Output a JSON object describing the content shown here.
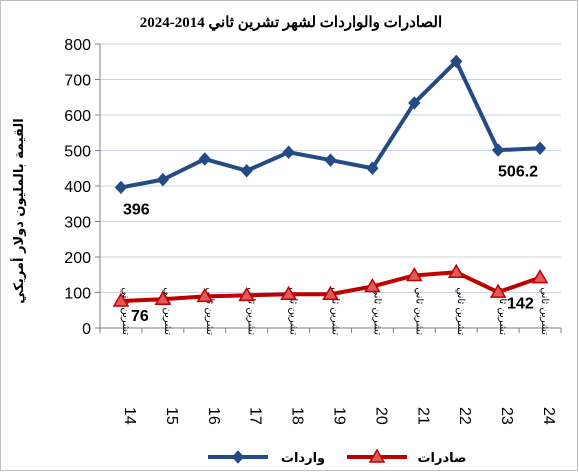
{
  "chart_data": {
    "type": "line",
    "title": "الصادرات والواردات لشهر تشرين ثاني 2014-2024",
    "xlabel": "",
    "ylabel": "القيمة بالمليون دولار أمريكي",
    "ylim": [
      0,
      800
    ],
    "yticks": [
      0,
      100,
      200,
      300,
      400,
      500,
      600,
      700,
      800
    ],
    "grid": true,
    "legend_position": "bottom",
    "categories": [
      {
        "num": "14",
        "word": "تشرين ثاني"
      },
      {
        "num": "15",
        "word": "تشرين ثاني"
      },
      {
        "num": "16",
        "word": "تشرين ثاني"
      },
      {
        "num": "17",
        "word": "تشرين ثاني"
      },
      {
        "num": "18",
        "word": "تشرين ثاني"
      },
      {
        "num": "19",
        "word": "تشرين ثاني"
      },
      {
        "num": "20",
        "word": "تشرين ثاني"
      },
      {
        "num": "21",
        "word": "تشرين ثاني"
      },
      {
        "num": "22",
        "word": "تشرين ثاني"
      },
      {
        "num": "23",
        "word": "تشرين ثاني"
      },
      {
        "num": "24",
        "word": "تشرين ثاني"
      }
    ],
    "series": [
      {
        "name": "واردات",
        "color": "#254a85",
        "marker": "diamond",
        "values": [
          396,
          418,
          476,
          443,
          495,
          473,
          450,
          634,
          751,
          501,
          506.2
        ]
      },
      {
        "name": "صادرات",
        "color": "#c00000",
        "marker": "triangle",
        "marker_fill": "#e05a5a",
        "values": [
          76,
          81,
          89,
          92,
          95,
          95,
          117,
          148,
          157,
          101,
          142
        ]
      }
    ],
    "data_labels": [
      {
        "series": 0,
        "index": 0,
        "text": "396"
      },
      {
        "series": 0,
        "index": 10,
        "text": "506.2"
      },
      {
        "series": 1,
        "index": 0,
        "text": "76"
      },
      {
        "series": 1,
        "index": 10,
        "text": "142"
      }
    ]
  }
}
